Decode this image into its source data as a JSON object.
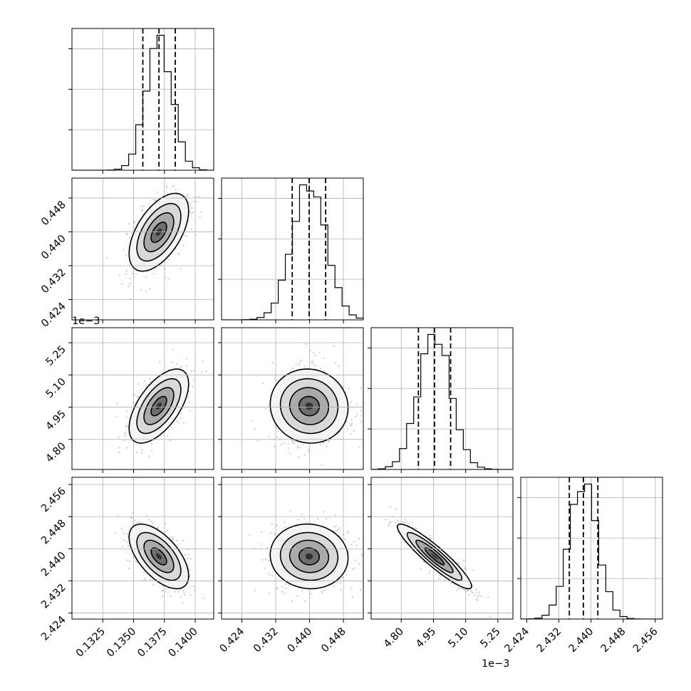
{
  "chart_data": {
    "type": "corner",
    "params": [
      {
        "id": "p0",
        "range": [
          0.13,
          0.1415
        ],
        "mean": 0.13705,
        "sd": 0.00105,
        "quantiles": [
          0.13575,
          0.13706,
          0.13838
        ],
        "ticks": [
          0.1325,
          0.135,
          0.1375,
          0.14
        ],
        "tick_labels": [
          "0.1325",
          "0.1350",
          "0.1375",
          "0.1400"
        ]
      },
      {
        "id": "p1",
        "range": [
          0.4192,
          0.4527
        ],
        "mean": 0.4399,
        "sd": 0.004,
        "quantiles": [
          0.4359,
          0.4399,
          0.4438
        ],
        "ticks": [
          0.424,
          0.432,
          0.44,
          0.448
        ],
        "tick_labels": [
          "0.424",
          "0.432",
          "0.440",
          "0.448"
        ]
      },
      {
        "id": "p2",
        "range": [
          4.66,
          5.32
        ],
        "mean": 4.955,
        "sd": 0.075,
        "quantiles": [
          4.88,
          4.955,
          5.03
        ],
        "ticks": [
          4.8,
          4.95,
          5.1,
          5.25
        ],
        "tick_labels": [
          "4.80",
          "4.95",
          "5.10",
          "5.25"
        ],
        "offset_text": "1e−3"
      },
      {
        "id": "p3",
        "range": [
          2.4225,
          2.4578
        ],
        "mean": 2.4381,
        "sd": 0.0035,
        "quantiles": [
          2.4346,
          2.4381,
          2.4417
        ],
        "ticks": [
          2.424,
          2.432,
          2.44,
          2.448,
          2.456
        ],
        "tick_labels": [
          "2.424",
          "2.432",
          "2.440",
          "2.448",
          "2.456"
        ]
      }
    ],
    "correlations": [
      {
        "pair": [
          "p0",
          "p1"
        ],
        "rho": 0.55
      },
      {
        "pair": [
          "p0",
          "p2"
        ],
        "rho": 0.6
      },
      {
        "pair": [
          "p1",
          "p2"
        ],
        "rho": -0.05
      },
      {
        "pair": [
          "p0",
          "p3"
        ],
        "rho": -0.6
      },
      {
        "pair": [
          "p1",
          "p3"
        ],
        "rho": -0.05
      },
      {
        "pair": [
          "p2",
          "p3"
        ],
        "rho": -0.92
      }
    ],
    "y_offset_text": "1e−3",
    "histogram_bins": 20,
    "quantile_line_style": "dashed",
    "grid": true,
    "legend": "none"
  }
}
